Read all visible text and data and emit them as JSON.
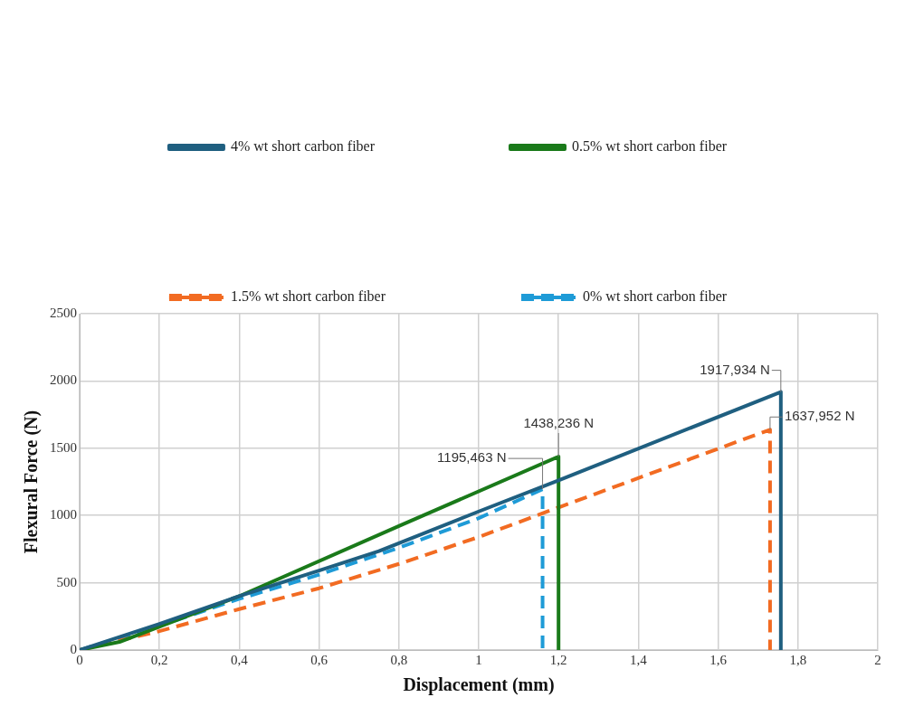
{
  "chart_data": {
    "type": "line",
    "xlabel": "Displacement (mm)",
    "ylabel": "Flexural Force (N)",
    "xlim": [
      0,
      2
    ],
    "ylim": [
      0,
      2500
    ],
    "xticks": [
      0,
      {
        "value": 0.2,
        "label": "0,2"
      },
      {
        "value": 0.4,
        "label": "0,4"
      },
      {
        "value": 0.6,
        "label": "0,6"
      },
      {
        "value": 0.8,
        "label": "0,8"
      },
      1,
      {
        "value": 1.2,
        "label": "1,2"
      },
      {
        "value": 1.4,
        "label": "1,4"
      },
      {
        "value": 1.6,
        "label": "1,6"
      },
      {
        "value": 1.8,
        "label": "1,8"
      },
      2
    ],
    "yticks": [
      0,
      500,
      1000,
      1500,
      2000,
      2500
    ],
    "grid": true,
    "legend": "top",
    "series": [
      {
        "name": "4% wt short carbon fiber",
        "color": "#1f5f80",
        "line_style": "solid",
        "x": [
          0,
          0.2,
          0.4,
          0.6,
          0.75,
          0.8,
          1,
          1.2,
          1.757,
          1.757
        ],
        "values": [
          0,
          194,
          401,
          591,
          735,
          794,
          1030,
          1261,
          1918,
          0
        ]
      },
      {
        "name": "0.5% wt short carbon fiber",
        "color": "#1a7a1a",
        "line_style": "solid",
        "x": [
          0,
          0.1,
          0.4,
          0.8,
          1.2,
          1.2
        ],
        "values": [
          0,
          60,
          400,
          921,
          1438,
          0
        ]
      },
      {
        "name": "1.5% wt short carbon fiber",
        "color": "#f26b22",
        "line_style": "dashed",
        "x": [
          0,
          0.2,
          0.4,
          0.6,
          0.8,
          1,
          1.2,
          1.73,
          1.73
        ],
        "values": [
          0,
          140,
          304,
          459,
          640,
          840,
          1060,
          1638,
          0
        ]
      },
      {
        "name": "0% wt short carbon fiber",
        "color": "#1e9bd7",
        "line_style": "dashed",
        "x": [
          0,
          0.2,
          0.4,
          0.6,
          0.8,
          1,
          1.16,
          1.16
        ],
        "values": [
          0,
          180,
          380,
          560,
          760,
          980,
          1195,
          0
        ]
      }
    ],
    "annotations": [
      {
        "text": "1917,934 N",
        "x": 1.757,
        "y": 1917.934
      },
      {
        "text": "1637,952 N",
        "x": 1.73,
        "y": 1637.952
      },
      {
        "text": "1438,236 N",
        "x": 1.2,
        "y": 1438.236
      },
      {
        "text": "1195,463 N",
        "x": 1.16,
        "y": 1195.463
      }
    ]
  }
}
